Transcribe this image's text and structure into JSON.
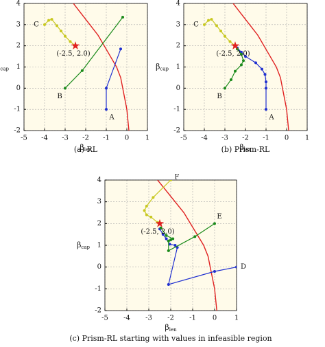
{
  "chart_data": [
    {
      "type": "line",
      "caption": "(a) RL",
      "xlabel": {
        "base": "β",
        "sub": "len"
      },
      "ylabel": {
        "base": "β",
        "sub": "cap"
      },
      "xlim": [
        -5,
        1
      ],
      "ylim": [
        -2,
        4
      ],
      "xticks": [
        -5,
        -4,
        -3,
        -2,
        -1,
        0,
        1
      ],
      "yticks": [
        -2,
        -1,
        0,
        1,
        2,
        3,
        4
      ],
      "grid": true,
      "boundary": {
        "color": "#e02020",
        "x": [
          -2.6,
          -2.2,
          -1.8,
          -1.4,
          -1.1,
          -0.8,
          -0.5,
          -0.3,
          -0.2,
          -0.1,
          0,
          0.05,
          0.1
        ],
        "y": [
          4,
          3.5,
          3,
          2.5,
          2,
          1.5,
          1,
          0.5,
          0,
          -0.5,
          -1,
          -1.5,
          -2
        ]
      },
      "star": {
        "x": -2.5,
        "y": 2.0,
        "label": "(-2.5, 2.0)",
        "color": "#e02020"
      },
      "series": [
        {
          "name": "A",
          "color": "#1f2fd0",
          "x": [
            -1,
            -1,
            -0.3
          ],
          "values": [
            -1,
            0,
            1.85
          ]
        },
        {
          "name": "B",
          "color": "#1a8a1a",
          "x": [
            -3,
            -2.17,
            -0.2
          ],
          "values": [
            0,
            0.83,
            3.35
          ]
        },
        {
          "name": "C",
          "color": "#c8c820",
          "x": [
            -4,
            -3.8,
            -3.65,
            -3.4,
            -3.2,
            -3,
            -2.75,
            -2.5
          ],
          "values": [
            3,
            3.2,
            3.25,
            2.95,
            2.7,
            2.45,
            2.2,
            2.0
          ]
        }
      ]
    },
    {
      "type": "line",
      "caption": "(b) Prism-RL",
      "xlabel": {
        "base": "β",
        "sub": "len"
      },
      "ylabel": {
        "base": "β",
        "sub": "cap"
      },
      "xlim": [
        -5,
        1
      ],
      "ylim": [
        -2,
        4
      ],
      "xticks": [
        -5,
        -4,
        -3,
        -2,
        -1,
        0,
        1
      ],
      "yticks": [
        -2,
        -1,
        0,
        1,
        2,
        3,
        4
      ],
      "grid": true,
      "boundary": {
        "color": "#e02020",
        "x": [
          -2.6,
          -2.2,
          -1.8,
          -1.4,
          -1.1,
          -0.8,
          -0.5,
          -0.3,
          -0.2,
          -0.1,
          0,
          0.05,
          0.1
        ],
        "y": [
          4,
          3.5,
          3,
          2.5,
          2,
          1.5,
          1,
          0.5,
          0,
          -0.5,
          -1,
          -1.5,
          -2
        ]
      },
      "star": {
        "x": -2.5,
        "y": 2.0,
        "label": "(-2.5, 2.0)",
        "color": "#e02020"
      },
      "series": [
        {
          "name": "A",
          "color": "#1f2fd0",
          "x": [
            -1,
            -1,
            -1,
            -1.05,
            -1.2,
            -1.5,
            -2,
            -2.2,
            -2.4
          ],
          "values": [
            -1,
            0,
            0.3,
            0.65,
            0.9,
            1.2,
            1.5,
            1.7,
            1.9
          ]
        },
        {
          "name": "B",
          "color": "#1a8a1a",
          "x": [
            -3,
            -2.7,
            -2.5,
            -2.2,
            -2.1,
            -2.2,
            -2.4
          ],
          "values": [
            0,
            0.4,
            0.8,
            1.1,
            1.3,
            1.6,
            1.85
          ]
        },
        {
          "name": "C",
          "color": "#c8c820",
          "x": [
            -4,
            -3.8,
            -3.65,
            -3.4,
            -3.2,
            -3,
            -2.75,
            -2.5
          ],
          "values": [
            3,
            3.2,
            3.25,
            2.95,
            2.7,
            2.45,
            2.2,
            2.0
          ]
        }
      ]
    },
    {
      "type": "line",
      "caption": "(c) Prism-RL starting with values in infeasible region",
      "xlabel": {
        "base": "β",
        "sub": "len"
      },
      "ylabel": {
        "base": "β",
        "sub": "cap"
      },
      "xlim": [
        -5,
        1
      ],
      "ylim": [
        -2,
        4
      ],
      "xticks": [
        -5,
        -4,
        -3,
        -2,
        -1,
        0,
        1
      ],
      "yticks": [
        -2,
        -1,
        0,
        1,
        2,
        3,
        4
      ],
      "grid": true,
      "boundary": {
        "color": "#e02020",
        "x": [
          -2.6,
          -2.2,
          -1.8,
          -1.4,
          -1.1,
          -0.8,
          -0.5,
          -0.3,
          -0.2,
          -0.1,
          0,
          0.05,
          0.1
        ],
        "y": [
          4,
          3.5,
          3,
          2.5,
          2,
          1.5,
          1,
          0.5,
          0,
          -0.5,
          -1,
          -1.5,
          -2
        ]
      },
      "star": {
        "x": -2.5,
        "y": 2.0,
        "label": "(-2.5, 2.0)",
        "color": "#e02020"
      },
      "series": [
        {
          "name": "D",
          "color": "#1f2fd0",
          "x": [
            1,
            0,
            -2.1,
            -1.7,
            -1.8,
            -2.05,
            -2.2,
            -2.35,
            -2.5
          ],
          "values": [
            0,
            -0.2,
            -0.8,
            0.9,
            1.0,
            1.05,
            1.3,
            1.5,
            1.75
          ]
        },
        {
          "name": "E",
          "color": "#1a8a1a",
          "x": [
            0,
            -0.9,
            -2.1,
            -2.1,
            -2.0,
            -1.9,
            -2.2,
            -2.45
          ],
          "values": [
            2,
            1.4,
            0.75,
            1.2,
            1.25,
            1.3,
            1.45,
            1.8
          ]
        },
        {
          "name": "F",
          "color": "#c8c820",
          "x": [
            -2,
            -2.8,
            -3.1,
            -3.2,
            -3.1,
            -2.9,
            -2.6
          ],
          "values": [
            4,
            3.2,
            2.8,
            2.6,
            2.4,
            2.3,
            2.05
          ]
        }
      ]
    }
  ]
}
